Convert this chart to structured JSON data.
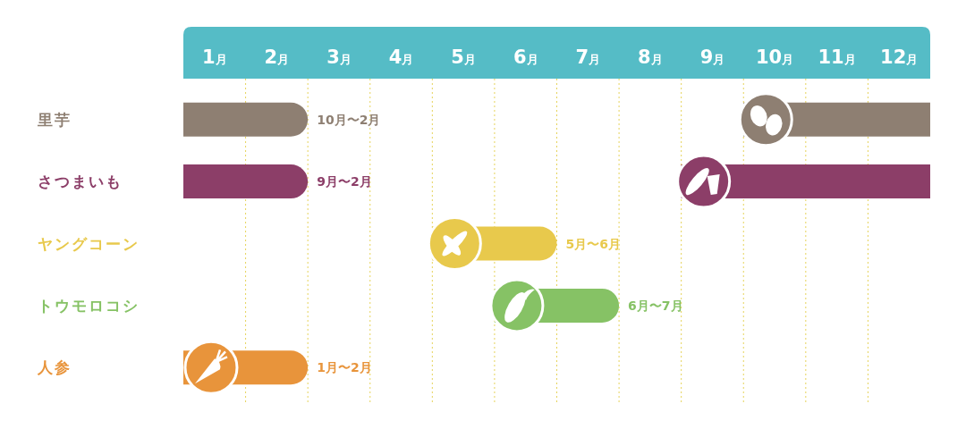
{
  "chart_data": {
    "type": "bar",
    "orientation": "horizontal",
    "categories": [
      "里芋",
      "さつまいも",
      "ヤングコーン",
      "トウモロコシ",
      "人参"
    ],
    "series": [
      {
        "values": [
          2,
          2,
          2,
          2,
          2
        ],
        "base": [
          0,
          0,
          4,
          5,
          0
        ],
        "colors": [
          "#8e7f72",
          "#8c3e68",
          "#e8c94c",
          "#86c265",
          "#e8943b"
        ]
      },
      {
        "values": [
          3,
          4,
          null,
          null,
          null
        ],
        "base": [
          9,
          8,
          null,
          null,
          null
        ],
        "colors": [
          "#8e7f72",
          "#8c3e68",
          null,
          null,
          null
        ]
      }
    ],
    "xlim": [
      0,
      12
    ],
    "xticks": [
      {
        "value": 0.5,
        "label": "1月"
      },
      {
        "value": 1.5,
        "label": "2月"
      },
      {
        "value": 2.5,
        "label": "3月"
      },
      {
        "value": 3.5,
        "label": "4月"
      },
      {
        "value": 4.5,
        "label": "5月"
      },
      {
        "value": 5.5,
        "label": "6月"
      },
      {
        "value": 6.5,
        "label": "7月"
      },
      {
        "value": 7.5,
        "label": "8月"
      },
      {
        "value": 8.5,
        "label": "9月"
      },
      {
        "value": 9.5,
        "label": "10月"
      },
      {
        "value": 10.5,
        "label": "11月"
      },
      {
        "value": 11.5,
        "label": "12月"
      },
      {
        "value": 1,
        "label": null
      },
      {
        "value": 2,
        "label": null
      },
      {
        "value": 3,
        "label": null
      },
      {
        "value": 4,
        "label": null
      },
      {
        "value": 5,
        "label": null
      },
      {
        "value": 6,
        "label": null
      },
      {
        "value": 7,
        "label": null
      },
      {
        "value": 8,
        "label": null
      },
      {
        "value": 9,
        "label": null
      },
      {
        "value": 10,
        "label": null
      },
      {
        "value": 11,
        "label": null
      }
    ],
    "grid": "x",
    "annotations": [
      {
        "text": "10月〜2月",
        "x": 2,
        "y": "里芋"
      },
      {
        "text": "9月〜2月",
        "x": 2,
        "y": "さつまいも"
      },
      {
        "text": "5月〜6月",
        "x": 6,
        "y": "ヤングコーン"
      },
      {
        "text": "6月〜7月",
        "x": 7,
        "y": "トウモロコシ"
      },
      {
        "text": "1月〜2月",
        "x": 2,
        "y": "人参"
      }
    ]
  }
}
